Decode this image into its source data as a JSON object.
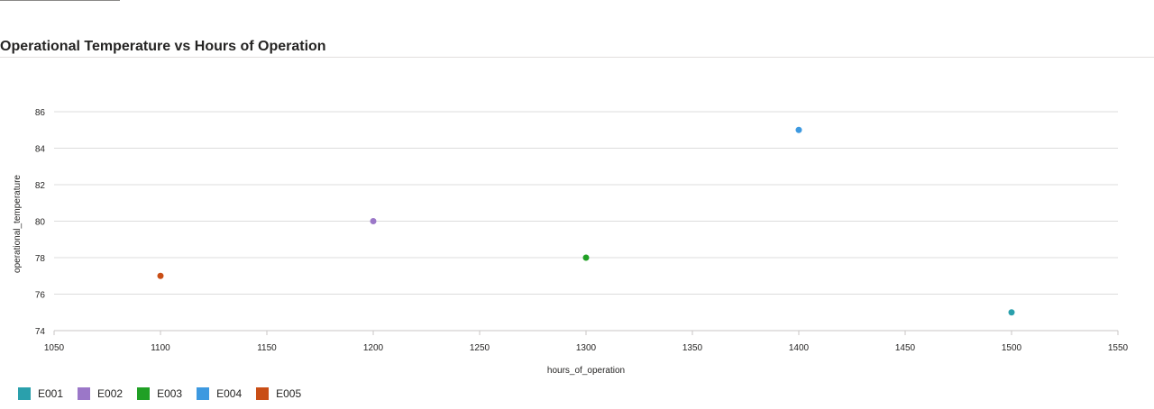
{
  "chart_data": {
    "type": "scatter",
    "title": "Operational Temperature vs Hours of Operation",
    "xlabel": "hours_of_operation",
    "ylabel": "operational_temperature",
    "xlim": [
      1050,
      1550
    ],
    "ylim": [
      74,
      86
    ],
    "xticks": [
      1050,
      1100,
      1150,
      1200,
      1250,
      1300,
      1350,
      1400,
      1450,
      1500,
      1550
    ],
    "yticks": [
      74,
      76,
      78,
      80,
      82,
      84,
      86
    ],
    "grid": "horizontal",
    "legend_position": "bottom-left",
    "series": [
      {
        "name": "E001",
        "color": "#2AA0AC",
        "x": [
          1500
        ],
        "y": [
          75
        ]
      },
      {
        "name": "E002",
        "color": "#9B77C8",
        "x": [
          1200
        ],
        "y": [
          80
        ]
      },
      {
        "name": "E003",
        "color": "#20A025",
        "x": [
          1300
        ],
        "y": [
          78
        ]
      },
      {
        "name": "E004",
        "color": "#3D99E0",
        "x": [
          1400
        ],
        "y": [
          85
        ]
      },
      {
        "name": "E005",
        "color": "#C94E16",
        "x": [
          1100
        ],
        "y": [
          77
        ]
      }
    ]
  }
}
